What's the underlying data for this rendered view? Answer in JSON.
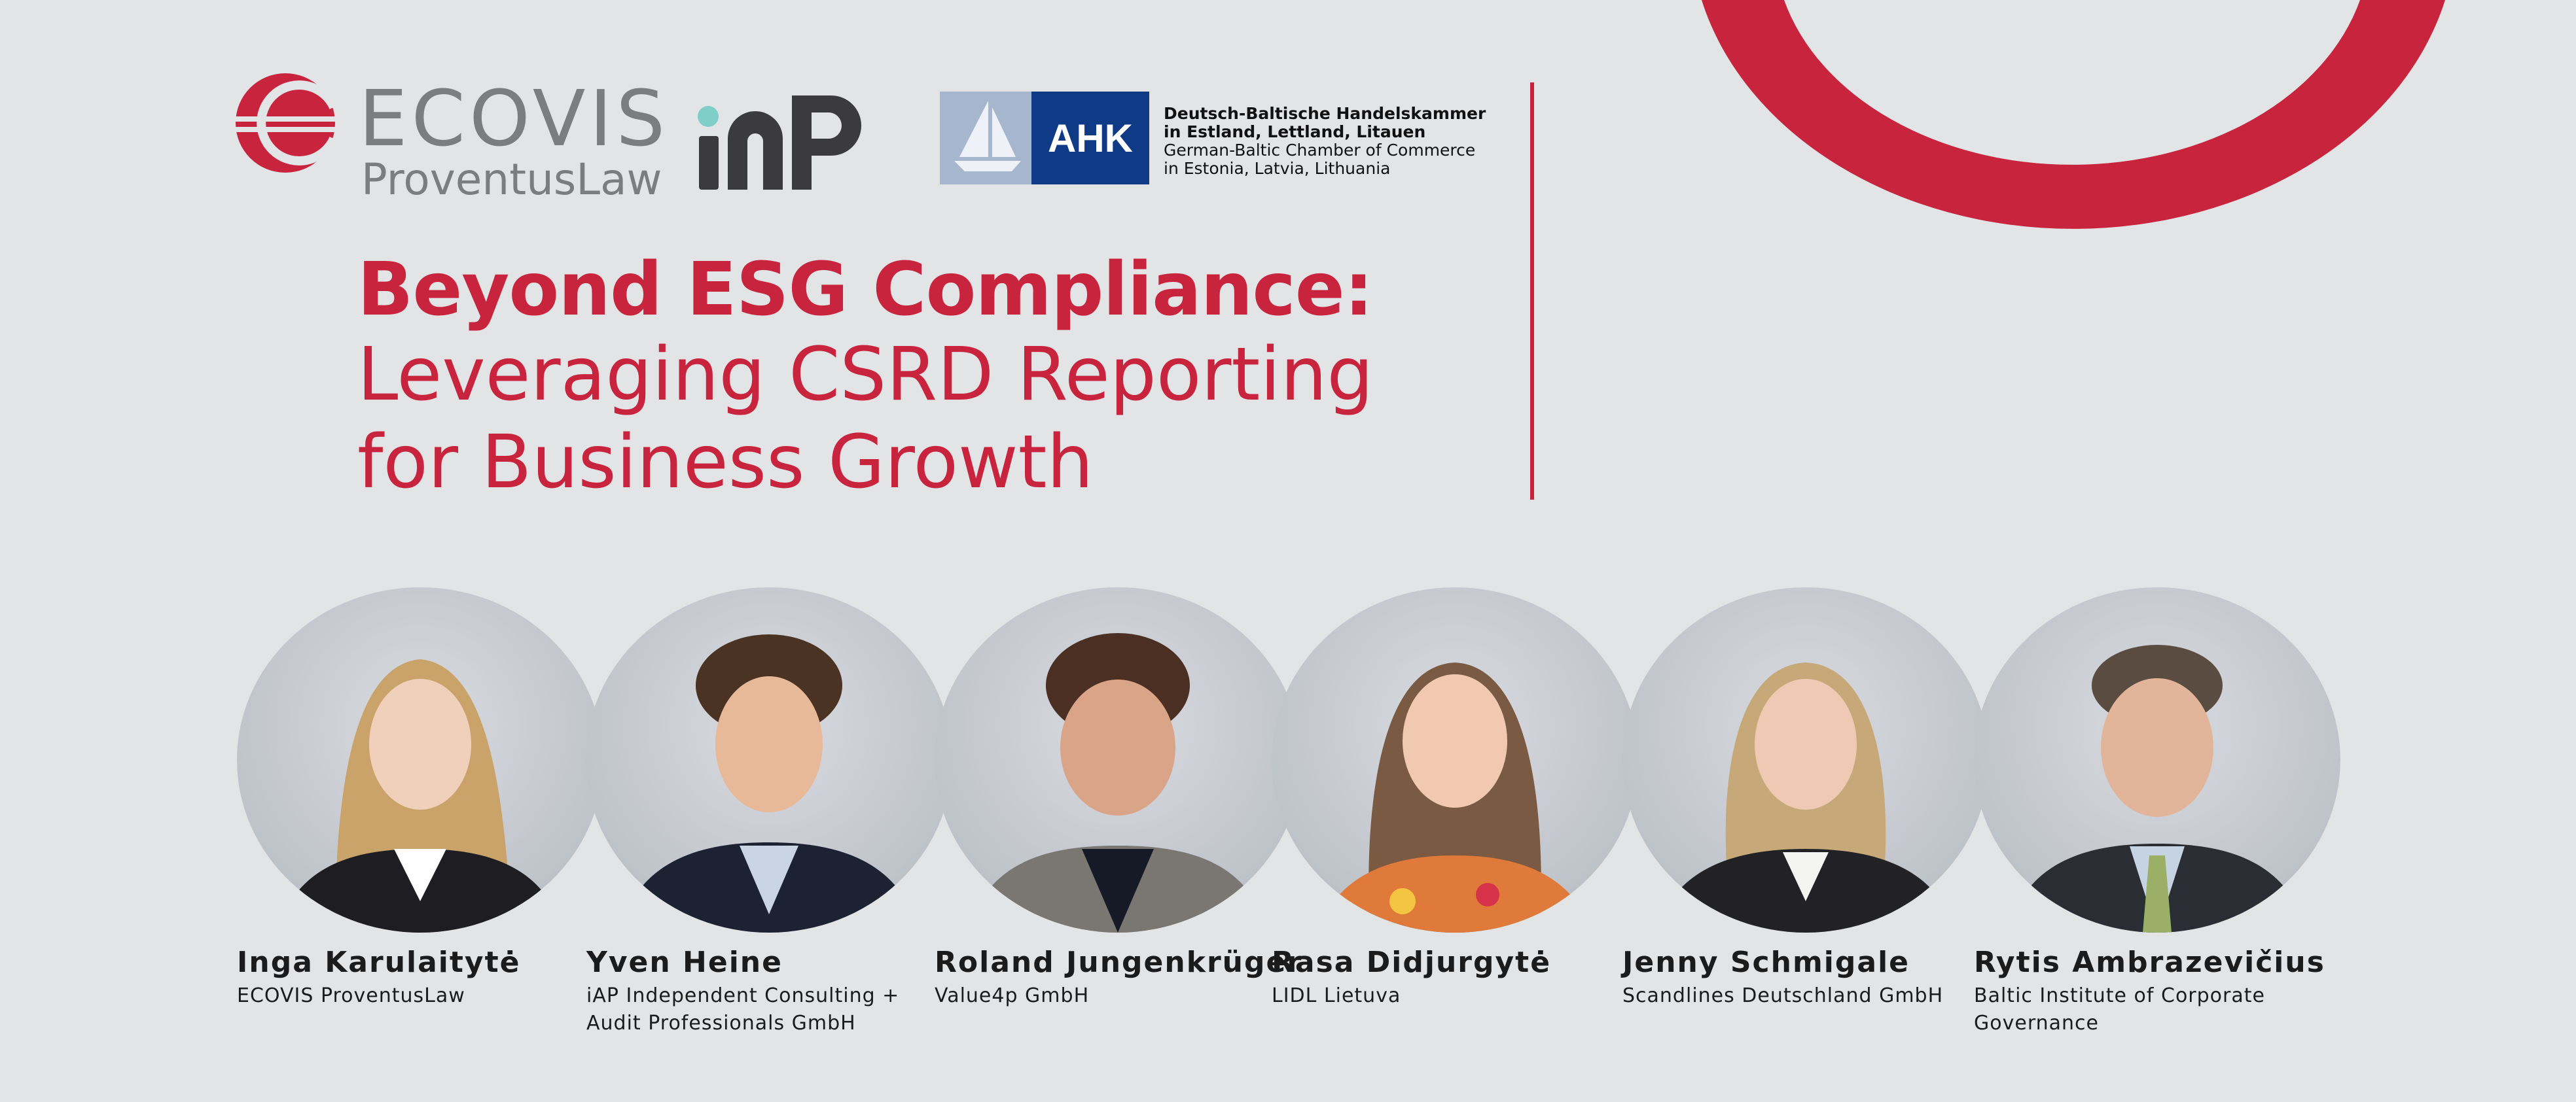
{
  "logos": {
    "ecovis_word": "ECOVIS",
    "ecovis_sub": "ProventusLaw",
    "iap": "iAP",
    "ahk_badge": "AHK",
    "ahk_lines": [
      "Deutsch-Baltische Handelskammer",
      "in Estland, Lettland, Litauen",
      "German-Baltic Chamber of Commerce",
      "in Estonia, Latvia, Lithuania"
    ]
  },
  "title": {
    "line1": "Beyond ESG Compliance:",
    "line2": "Leveraging CSRD Reporting",
    "line3": "for Business Growth"
  },
  "colors": {
    "accent": "#c8243d",
    "background": "#e3e4e6",
    "ahk_blue": "#0f3b86"
  },
  "speakers": [
    {
      "name": "Inga Karulaitytė",
      "org_line1": "ECOVIS ProventusLaw",
      "org_line2": ""
    },
    {
      "name": "Yven Heine",
      "org_line1": "iAP Independent Consulting +",
      "org_line2": "Audit Professionals GmbH"
    },
    {
      "name": "Roland Jungenkrüger",
      "org_line1": "Value4p GmbH",
      "org_line2": ""
    },
    {
      "name": "Rasa Didjurgytė",
      "org_line1": "LIDL Lietuva",
      "org_line2": ""
    },
    {
      "name": "Jenny Schmigale",
      "org_line1": "Scandlines Deutschland GmbH",
      "org_line2": ""
    },
    {
      "name": "Rytis Ambrazevičius",
      "org_line1": "Baltic Institute of Corporate",
      "org_line2": "Governance"
    }
  ]
}
